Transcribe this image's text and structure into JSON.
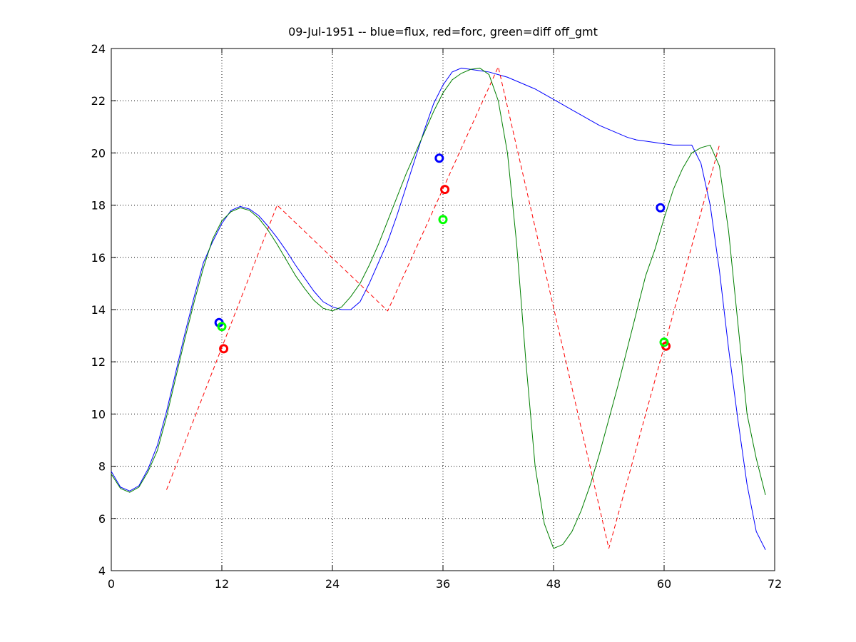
{
  "chart_data": {
    "type": "line",
    "title": "09-Jul-1951 -- blue=flux, red=forc, green=diff off_gmt",
    "xlim": [
      0,
      72
    ],
    "xticks": [
      0,
      12,
      24,
      36,
      48,
      60,
      72
    ],
    "ylim": [
      4,
      24
    ],
    "yticks": [
      4,
      6,
      8,
      10,
      12,
      14,
      16,
      18,
      20,
      22,
      24
    ],
    "grid": true,
    "series": [
      {
        "color": "#0000ff",
        "line_style": "solid",
        "marker": "none",
        "x": [
          0,
          1,
          2,
          3,
          4,
          5,
          6,
          7,
          8,
          9,
          10,
          11,
          12,
          13,
          14,
          15,
          16,
          17,
          18,
          19,
          20,
          21,
          22,
          23,
          24,
          25,
          26,
          27,
          28,
          29,
          30,
          31,
          32,
          33,
          34,
          35,
          36,
          37,
          38,
          39,
          40,
          41,
          42,
          43,
          44,
          45,
          46,
          47,
          48,
          49,
          50,
          51,
          52,
          53,
          54,
          55,
          56,
          57,
          58,
          59,
          60,
          61,
          62,
          63,
          64,
          65,
          66,
          67,
          68,
          69,
          70,
          71
        ],
        "values": [
          7.8,
          7.2,
          7.05,
          7.25,
          7.9,
          8.8,
          10.1,
          11.6,
          13.1,
          14.5,
          15.8,
          16.6,
          17.3,
          17.8,
          17.95,
          17.85,
          17.6,
          17.2,
          16.75,
          16.25,
          15.7,
          15.2,
          14.7,
          14.3,
          14.1,
          14.0,
          14.0,
          14.3,
          15.0,
          15.8,
          16.6,
          17.6,
          18.7,
          19.8,
          20.9,
          21.9,
          22.6,
          23.1,
          23.25,
          23.2,
          23.15,
          23.1,
          23.0,
          22.9,
          22.75,
          22.6,
          22.45,
          22.25,
          22.05,
          21.85,
          21.65,
          21.45,
          21.25,
          21.05,
          20.9,
          20.75,
          20.6,
          20.5,
          20.45,
          20.4,
          20.35,
          20.3,
          20.3,
          20.3,
          19.6,
          18.0,
          15.5,
          12.5,
          9.8,
          7.3,
          5.5,
          4.8
        ]
      },
      {
        "color": "#ff0000",
        "line_style": "dashed",
        "marker": "none",
        "x": [
          6,
          18,
          30,
          42,
          54,
          66
        ],
        "values": [
          7.1,
          18.0,
          13.95,
          23.3,
          4.85,
          20.3
        ]
      },
      {
        "color": "#007f00",
        "line_style": "solid",
        "marker": "none",
        "x": [
          0,
          1,
          2,
          3,
          4,
          5,
          6,
          7,
          8,
          9,
          10,
          11,
          12,
          13,
          14,
          15,
          16,
          17,
          18,
          19,
          20,
          21,
          22,
          23,
          24,
          25,
          26,
          27,
          28,
          29,
          30,
          31,
          32,
          33,
          34,
          35,
          36,
          37,
          38,
          39,
          40,
          41,
          42,
          43,
          44,
          45,
          46,
          47,
          48,
          49,
          50,
          51,
          52,
          53,
          54,
          55,
          56,
          57,
          58,
          59,
          60,
          61,
          62,
          63,
          64,
          65,
          66,
          67,
          68,
          69,
          70,
          71
        ],
        "values": [
          7.7,
          7.15,
          7.0,
          7.2,
          7.8,
          8.6,
          9.9,
          11.4,
          12.9,
          14.3,
          15.6,
          16.7,
          17.4,
          17.75,
          17.9,
          17.8,
          17.5,
          17.05,
          16.5,
          15.9,
          15.3,
          14.8,
          14.35,
          14.05,
          13.95,
          14.1,
          14.5,
          15.0,
          15.7,
          16.5,
          17.4,
          18.3,
          19.2,
          20.0,
          20.8,
          21.6,
          22.3,
          22.8,
          23.05,
          23.2,
          23.25,
          23.0,
          22.0,
          20.0,
          16.5,
          12.0,
          8.0,
          5.8,
          4.85,
          5.0,
          5.5,
          6.3,
          7.3,
          8.5,
          9.8,
          11.1,
          12.5,
          13.9,
          15.3,
          16.3,
          17.5,
          18.6,
          19.4,
          20.0,
          20.2,
          20.3,
          19.5,
          17.0,
          13.5,
          10.0,
          8.3,
          6.9
        ]
      },
      {
        "color": "#0000ff",
        "line_style": "none",
        "marker": "o",
        "x": [
          11.7,
          35.6,
          59.6
        ],
        "values": [
          13.5,
          19.8,
          17.9
        ]
      },
      {
        "color": "#ff0000",
        "line_style": "none",
        "marker": "o",
        "x": [
          12.2,
          36.2,
          60.2
        ],
        "values": [
          12.5,
          18.6,
          12.6
        ]
      },
      {
        "color": "#00ff00",
        "line_style": "none",
        "marker": "o",
        "x": [
          12.0,
          36.0,
          60.0
        ],
        "values": [
          13.35,
          17.45,
          12.75
        ]
      }
    ]
  }
}
